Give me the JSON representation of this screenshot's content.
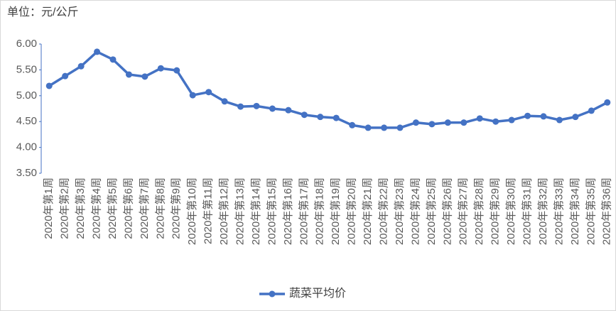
{
  "chart_data": {
    "type": "line",
    "unit_label": "单位：元/公斤",
    "categories": [
      "2020年第1周",
      "2020年第2周",
      "2020年第3周",
      "2020年第4周",
      "2020年第5周",
      "2020年第6周",
      "2020年第7周",
      "2020年第8周",
      "2020年第9周",
      "2020年第10周",
      "2020年第11周",
      "2020年第12周",
      "2020年第13周",
      "2020年第14周",
      "2020年第15周",
      "2020年第16周",
      "2020年第17周",
      "2020年第18周",
      "2020年第19周",
      "2020年第20周",
      "2020年第21周",
      "2020年第22周",
      "2020年第23周",
      "2020年第24周",
      "2020年第25周",
      "2020年第26周",
      "2020年第27周",
      "2020年第28周",
      "2020年第29周",
      "2020年第30周",
      "2020年第31周",
      "2020年第32周",
      "2020年第33周",
      "2020年第34周",
      "2020年第35周",
      "2020年第36周"
    ],
    "series": [
      {
        "name": "蔬菜平均价",
        "color": "#4472c4",
        "values": [
          5.19,
          5.38,
          5.57,
          5.85,
          5.7,
          5.41,
          5.37,
          5.53,
          5.49,
          5.01,
          5.07,
          4.89,
          4.79,
          4.8,
          4.75,
          4.72,
          4.63,
          4.59,
          4.57,
          4.43,
          4.38,
          4.38,
          4.38,
          4.48,
          4.45,
          4.48,
          4.48,
          4.56,
          4.5,
          4.53,
          4.61,
          4.6,
          4.53,
          4.59,
          4.71,
          4.87
        ]
      }
    ],
    "ylim": [
      3.5,
      6
    ],
    "yticks": [
      {
        "value": 3.5,
        "label": "3.50"
      },
      {
        "value": 4,
        "label": "4.00"
      },
      {
        "value": 4.5,
        "label": "4.50"
      },
      {
        "value": 5,
        "label": "5.00"
      },
      {
        "value": 5.5,
        "label": "5.50"
      },
      {
        "value": 6,
        "label": "6.00"
      }
    ],
    "grid": false,
    "legend": "bottom"
  }
}
